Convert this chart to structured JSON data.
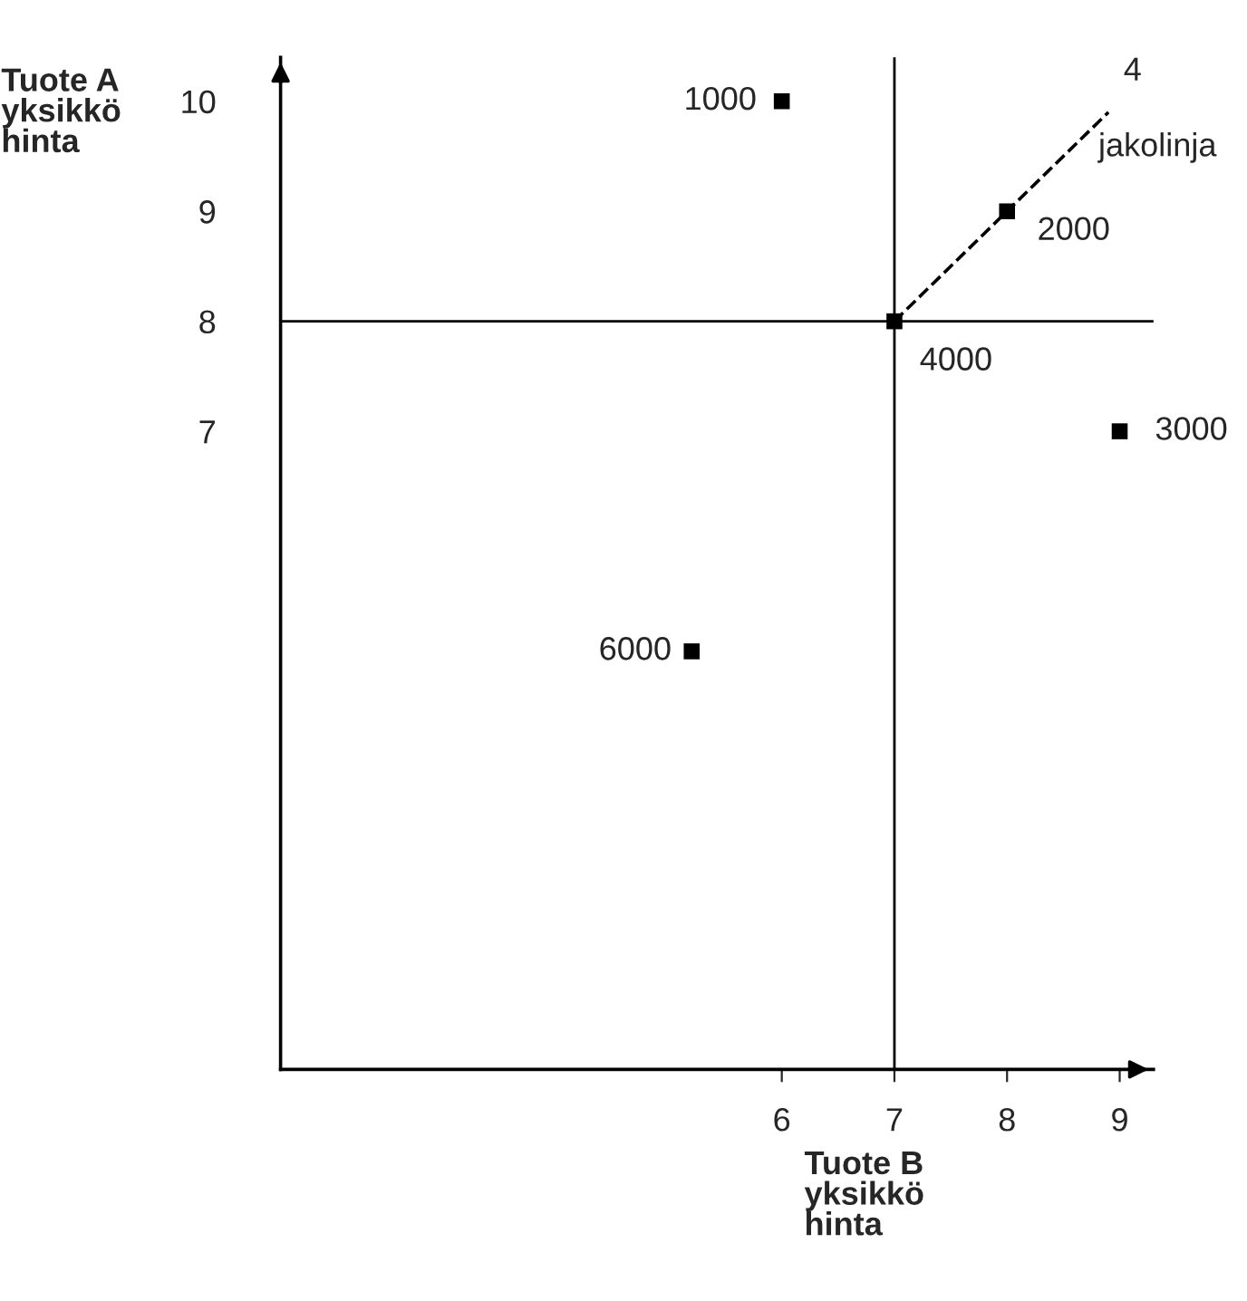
{
  "chart_data": {
    "type": "scatter",
    "xlabel": "Tuote B\nyksikkö\nhinta",
    "ylabel": "Tuote A\nyksikkö\nhinta",
    "series": [
      {
        "color": "#000000",
        "marker": "square",
        "x": [
          6,
          8,
          7,
          9,
          5.2
        ],
        "values": [
          10,
          9,
          8,
          7,
          5
        ]
      },
      {
        "type": "line",
        "color": "#000000",
        "marker": "none",
        "line_style": "dashed",
        "x": [
          7,
          8.9
        ],
        "values": [
          8,
          9.9
        ]
      }
    ],
    "xlim": [
      1.55,
      9.3
    ],
    "ylim": [
      1.2,
      10.4
    ],
    "xticks": [
      6,
      7,
      8,
      9
    ],
    "yticks": [
      7,
      8,
      9,
      10
    ],
    "ref_lines": [
      {
        "axis": "x",
        "value": 7,
        "color": "#000000"
      },
      {
        "axis": "y",
        "value": 8,
        "color": "#000000"
      }
    ],
    "annotations": [
      {
        "text": "1000",
        "x": 6,
        "y": 10
      },
      {
        "text": "2000",
        "x": 8,
        "y": 9
      },
      {
        "text": "4000",
        "x": 7,
        "y": 8
      },
      {
        "text": "3000",
        "x": 9,
        "y": 7
      },
      {
        "text": "6000",
        "x": 5.2,
        "y": 5
      },
      {
        "text": "4",
        "x": 8.9,
        "y": 9.9
      },
      {
        "text": "jakolinja",
        "x": 8.9,
        "y": 9.9
      }
    ],
    "grid": false,
    "legend": false
  }
}
